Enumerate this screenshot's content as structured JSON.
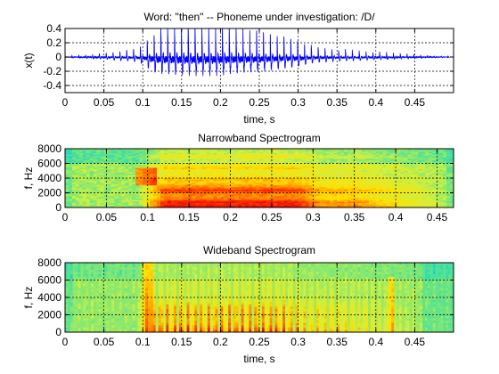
{
  "figure": {
    "background": "#ffffff"
  },
  "chart_data": [
    {
      "type": "line",
      "title": "Word: \"then\" --  Phoneme under investigation: /D/",
      "xlabel": "time, s",
      "ylabel": "x(t)",
      "xlim": [
        0,
        0.5
      ],
      "ylim": [
        -0.5,
        0.4
      ],
      "xticks": [
        "0",
        "0.05",
        "0.1",
        "0.15",
        "0.2",
        "0.25",
        "0.3",
        "0.35",
        "0.4",
        "0.45"
      ],
      "yticks": [
        "0.4",
        "0.2",
        "0",
        "-0.2",
        "-0.4"
      ],
      "grid": true,
      "line_color": "#0000ff",
      "envelope": {
        "t": [
          0,
          0.01,
          0.05,
          0.09,
          0.1,
          0.11,
          0.12,
          0.15,
          0.2,
          0.25,
          0.28,
          0.3,
          0.32,
          0.35,
          0.4,
          0.43,
          0.46,
          0.49
        ],
        "amp": [
          0,
          0.02,
          0.05,
          0.12,
          0.18,
          0.33,
          0.42,
          0.45,
          0.44,
          0.36,
          0.3,
          0.25,
          0.15,
          0.11,
          0.07,
          0.05,
          0.025,
          0.01
        ]
      },
      "pitch_period_s": 0.0088
    },
    {
      "type": "heatmap",
      "title": "Narrowband Spectrogram",
      "xlabel": "",
      "ylabel": "f, Hz",
      "xlim": [
        0,
        0.47
      ],
      "ylim": [
        0,
        8000
      ],
      "xticks": [
        "0",
        "0.05",
        "0.1",
        "0.15",
        "0.2",
        "0.25",
        "0.3",
        "0.35",
        "0.4",
        "0.45"
      ],
      "yticks": [
        "8000",
        "6000",
        "4000",
        "2000",
        "0"
      ],
      "colormap": [
        "#00bfff",
        "#40e0a0",
        "#d0f040",
        "#ffe000",
        "#ff8000",
        "#ff2000",
        "#c00000"
      ],
      "grid": true
    },
    {
      "type": "heatmap",
      "title": "Wideband Spectrogram",
      "xlabel": "time, s",
      "ylabel": "f, Hz",
      "xlim": [
        0,
        0.5
      ],
      "ylim": [
        0,
        8000
      ],
      "xticks": [
        "0",
        "0.05",
        "0.1",
        "0.15",
        "0.2",
        "0.25",
        "0.3",
        "0.35",
        "0.4",
        "0.45"
      ],
      "yticks": [
        "8000",
        "6000",
        "4000",
        "2000",
        "0"
      ],
      "colormap": [
        "#00bfff",
        "#40e0a0",
        "#d0f040",
        "#ffe000",
        "#ff8000",
        "#ff2000",
        "#c00000"
      ],
      "grid": true
    }
  ]
}
